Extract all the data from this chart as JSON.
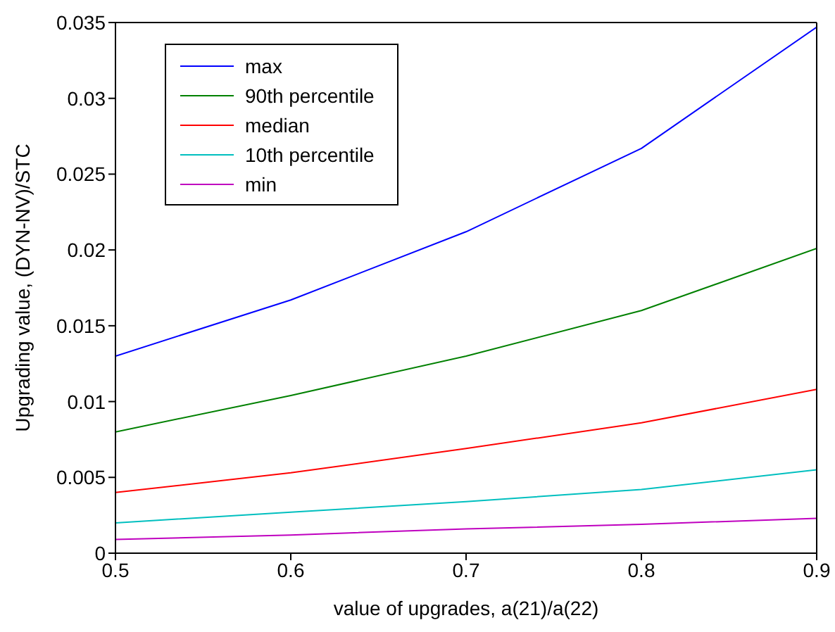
{
  "chart_data": {
    "type": "line",
    "xlabel": "value of upgrades, a(21)/a(22)",
    "ylabel": "Upgrading value, (DYN-NV)/STC",
    "x": [
      0.5,
      0.6,
      0.7,
      0.8,
      0.9
    ],
    "series": [
      {
        "name": "max",
        "color": "#0000ff",
        "values": [
          0.013,
          0.0167,
          0.0212,
          0.0267,
          0.0347
        ]
      },
      {
        "name": "90th percentile",
        "color": "#008000",
        "values": [
          0.008,
          0.0104,
          0.013,
          0.016,
          0.0201
        ]
      },
      {
        "name": "median",
        "color": "#ff0000",
        "values": [
          0.004,
          0.0053,
          0.0069,
          0.0086,
          0.0108
        ]
      },
      {
        "name": "10th percentile",
        "color": "#00bfbf",
        "values": [
          0.002,
          0.0027,
          0.0034,
          0.0042,
          0.0055
        ]
      },
      {
        "name": "min",
        "color": "#bf00bf",
        "values": [
          0.0009,
          0.0012,
          0.0016,
          0.0019,
          0.0023
        ]
      }
    ],
    "xlim": [
      0.5,
      0.9
    ],
    "xticks": [
      0.5,
      0.6,
      0.7,
      0.8,
      0.9
    ],
    "ylim": [
      0,
      0.035
    ],
    "yticks": [
      0,
      0.005,
      0.01,
      0.015,
      0.02,
      0.025,
      0.03,
      0.035
    ],
    "grid": false,
    "legend": "top left",
    "marker": "none",
    "line_style": "solid"
  }
}
